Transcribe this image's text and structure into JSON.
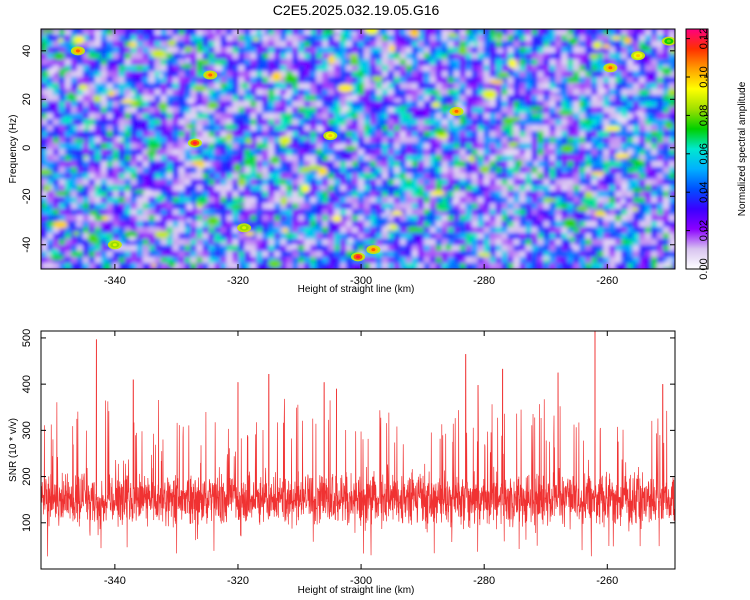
{
  "title": "C2E5.2025.032.19.05.G16",
  "chart_data": [
    {
      "type": "heatmap",
      "name": "spectrogram",
      "xlabel": "Height of straight line (km)",
      "ylabel": "Frequency (Hz)",
      "xlim": [
        -352,
        -249
      ],
      "ylim": [
        -50,
        49
      ],
      "xticks": [
        -340,
        -320,
        -300,
        -280,
        -260
      ],
      "yticks": [
        -40,
        -20,
        0,
        20,
        40
      ],
      "colorbar": {
        "label": "Normalized spectral amplitude",
        "range": [
          0.0,
          0.125
        ],
        "ticks": [
          "0.00",
          "0.02",
          "0.04",
          "0.06",
          "0.08",
          "0.10",
          "0.12"
        ],
        "tick_values": [
          0.0,
          0.02,
          0.04,
          0.06,
          0.08,
          0.1,
          0.12
        ],
        "colormap": [
          "#ffffff",
          "#d8c4f0",
          "#8a00ff",
          "#3a00ff",
          "#0050ff",
          "#00b0ff",
          "#00e8d0",
          "#00d000",
          "#a0e000",
          "#ffff00",
          "#ffa000",
          "#ff3000",
          "#ff0080"
        ]
      },
      "peaks": [
        {
          "x": -346,
          "y": 40,
          "value": 0.11
        },
        {
          "x": -327,
          "y": 2,
          "value": 0.12
        },
        {
          "x": -324.5,
          "y": 30,
          "value": 0.11
        },
        {
          "x": -300.5,
          "y": -45,
          "value": 0.12
        },
        {
          "x": -298,
          "y": -42,
          "value": 0.11
        },
        {
          "x": -305,
          "y": 5,
          "value": 0.1
        },
        {
          "x": -284.5,
          "y": 15,
          "value": 0.11
        },
        {
          "x": -259.5,
          "y": 33,
          "value": 0.11
        },
        {
          "x": -255,
          "y": 38,
          "value": 0.1
        },
        {
          "x": -340,
          "y": -40,
          "value": 0.09
        },
        {
          "x": -319,
          "y": -33,
          "value": 0.09
        },
        {
          "x": -250,
          "y": 44,
          "value": 0.08
        }
      ]
    },
    {
      "type": "line",
      "name": "snr",
      "xlabel": "Height of straight line (km)",
      "ylabel": "SNR (10 * v/v)",
      "xlim": [
        -352,
        -249
      ],
      "ylim": [
        0,
        515
      ],
      "xticks": [
        -340,
        -320,
        -300,
        -280,
        -260
      ],
      "yticks": [
        100,
        200,
        300,
        400,
        500
      ],
      "color": "#f03232",
      "typical_range": [
        20,
        280
      ],
      "peaks": [
        {
          "x": -343,
          "y": 497
        },
        {
          "x": -262,
          "y": 520
        },
        {
          "x": -283,
          "y": 465
        },
        {
          "x": -277,
          "y": 433
        },
        {
          "x": -268,
          "y": 425
        },
        {
          "x": -315,
          "y": 422
        },
        {
          "x": -337,
          "y": 410
        },
        {
          "x": -320,
          "y": 404
        },
        {
          "x": -306,
          "y": 404
        },
        {
          "x": -251,
          "y": 400
        },
        {
          "x": -281,
          "y": 398
        },
        {
          "x": -304,
          "y": 390
        }
      ]
    }
  ]
}
